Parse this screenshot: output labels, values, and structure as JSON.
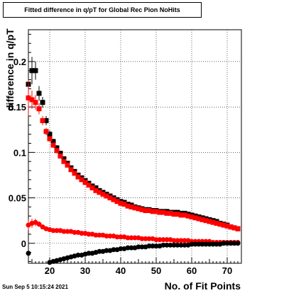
{
  "title": "Fitted difference in q/pT for Global Rec Pion NoHits",
  "timestamp": "Sun Sep  5 10:15:24 2021",
  "chart_data": {
    "type": "scatter",
    "title": "Fitted difference in q/pT for Global Rec Pion NoHits",
    "xlabel": "No. of Fit Points",
    "ylabel": "difference in q/pT",
    "xlim": [
      14,
      74
    ],
    "ylim": [
      -0.022,
      0.235
    ],
    "xticks": [
      20,
      30,
      40,
      50,
      60,
      70
    ],
    "yticks": [
      0,
      0.05,
      0.1,
      0.15,
      0.2
    ],
    "ytick_labels": [
      "0",
      "0.05",
      "0.1",
      "0.15",
      "0.2"
    ],
    "grid": true,
    "series": [
      {
        "color": "#000000",
        "marker": "square",
        "x": [
          14,
          15,
          16,
          17,
          18,
          19,
          20,
          21,
          22,
          23,
          24,
          25,
          26,
          27,
          28,
          29,
          30,
          31,
          32,
          33,
          34,
          35,
          36,
          37,
          38,
          39,
          40,
          41,
          42,
          43,
          44,
          45,
          46,
          47,
          48,
          49,
          50,
          51,
          52,
          53,
          54,
          55,
          56,
          57,
          58,
          59,
          60,
          61,
          62,
          63,
          64,
          65,
          66,
          67,
          68,
          69,
          70,
          71,
          72,
          73
        ],
        "y": [
          0.175,
          0.19,
          0.19,
          0.165,
          0.155,
          0.135,
          0.12,
          0.112,
          0.105,
          0.099,
          0.093,
          0.088,
          0.083,
          0.079,
          0.075,
          0.072,
          0.069,
          0.066,
          0.063,
          0.061,
          0.058,
          0.056,
          0.054,
          0.052,
          0.05,
          0.048,
          0.046,
          0.045,
          0.043,
          0.042,
          0.04,
          0.039,
          0.038,
          0.037,
          0.037,
          0.036,
          0.036,
          0.035,
          0.035,
          0.035,
          0.034,
          0.034,
          0.034,
          0.033,
          0.033,
          0.032,
          0.031,
          0.03,
          0.029,
          0.028,
          0.027,
          0.026,
          0.025,
          0.024,
          0.022,
          0.021,
          0.02,
          0.018,
          0.017,
          0.016
        ],
        "yerr": [
          0.03,
          0.015,
          0.01,
          0.008,
          0.006,
          0.005,
          0.004,
          0.003,
          0.003,
          0.003,
          0.002,
          0.002,
          0.002,
          0.002,
          0.002,
          0.002,
          0.002,
          0.002,
          0.002,
          0.002,
          0.002,
          0.002,
          0.002,
          0.002,
          0.002,
          0.002,
          0.002,
          0.002,
          0.002,
          0.002,
          0.002,
          0.002,
          0.002,
          0.002,
          0.002,
          0.002,
          0.002,
          0.002,
          0.002,
          0.002,
          0.002,
          0.002,
          0.002,
          0.002,
          0.002,
          0.002,
          0.002,
          0.002,
          0.002,
          0.002,
          0.002,
          0.002,
          0.002,
          0.002,
          0.002,
          0.002,
          0.002,
          0.002,
          0.002,
          0.002
        ]
      },
      {
        "color": "#ff0000",
        "marker": "square",
        "x": [
          14,
          15,
          16,
          17,
          18,
          19,
          20,
          21,
          22,
          23,
          24,
          25,
          26,
          27,
          28,
          29,
          30,
          31,
          32,
          33,
          34,
          35,
          36,
          37,
          38,
          39,
          40,
          41,
          42,
          43,
          44,
          45,
          46,
          47,
          48,
          49,
          50,
          51,
          52,
          53,
          54,
          55,
          56,
          57,
          58,
          59,
          60,
          61,
          62,
          63,
          64,
          65,
          66,
          67,
          68,
          69,
          70,
          71,
          72,
          73
        ],
        "y": [
          0.16,
          0.158,
          0.155,
          0.148,
          0.135,
          0.123,
          0.115,
          0.108,
          0.102,
          0.096,
          0.09,
          0.086,
          0.081,
          0.077,
          0.073,
          0.07,
          0.067,
          0.064,
          0.061,
          0.058,
          0.056,
          0.054,
          0.052,
          0.05,
          0.048,
          0.046,
          0.044,
          0.043,
          0.041,
          0.04,
          0.039,
          0.038,
          0.037,
          0.036,
          0.036,
          0.035,
          0.035,
          0.034,
          0.034,
          0.033,
          0.033,
          0.032,
          0.032,
          0.031,
          0.031,
          0.03,
          0.029,
          0.028,
          0.027,
          0.026,
          0.025,
          0.024,
          0.023,
          0.022,
          0.021,
          0.02,
          0.019,
          0.018,
          0.017,
          0.016
        ],
        "yerr": [
          0.02,
          0.01,
          0.008,
          0.006,
          0.005,
          0.004,
          0.003,
          0.003,
          0.003,
          0.002,
          0.002,
          0.002,
          0.002,
          0.002,
          0.002,
          0.002,
          0.002,
          0.002,
          0.002,
          0.002,
          0.002,
          0.002,
          0.002,
          0.002,
          0.002,
          0.002,
          0.002,
          0.002,
          0.002,
          0.002,
          0.002,
          0.002,
          0.002,
          0.002,
          0.002,
          0.002,
          0.002,
          0.002,
          0.002,
          0.002,
          0.002,
          0.002,
          0.002,
          0.002,
          0.002,
          0.002,
          0.002,
          0.002,
          0.002,
          0.002,
          0.002,
          0.002,
          0.002,
          0.002,
          0.002,
          0.002,
          0.002,
          0.002,
          0.002,
          0.002
        ]
      },
      {
        "color": "#ff0000",
        "marker": "circle",
        "x": [
          14,
          15,
          16,
          17,
          18,
          19,
          20,
          21,
          22,
          23,
          24,
          25,
          26,
          27,
          28,
          29,
          30,
          31,
          32,
          33,
          34,
          35,
          36,
          37,
          38,
          39,
          40,
          41,
          42,
          43,
          44,
          45,
          46,
          47,
          48,
          49,
          50,
          51,
          52,
          53,
          54,
          55,
          56,
          57,
          58,
          59,
          60,
          61,
          62,
          63,
          64,
          65,
          66,
          67,
          68,
          69,
          70,
          71,
          72,
          73
        ],
        "y": [
          0.02,
          0.022,
          0.023,
          0.021,
          0.018,
          0.016,
          0.015,
          0.014,
          0.014,
          0.014,
          0.013,
          0.013,
          0.013,
          0.012,
          0.012,
          0.011,
          0.011,
          0.01,
          0.01,
          0.009,
          0.009,
          0.009,
          0.008,
          0.008,
          0.008,
          0.007,
          0.007,
          0.007,
          0.006,
          0.006,
          0.006,
          0.006,
          0.005,
          0.005,
          0.005,
          0.005,
          0.004,
          0.004,
          0.004,
          0.004,
          0.004,
          0.003,
          0.003,
          0.003,
          0.003,
          0.003,
          0.002,
          0.002,
          0.002,
          0.002,
          0.002,
          0.002,
          0.001,
          0.001,
          0.001,
          0.001,
          0.001,
          0.001,
          0.001,
          0.001
        ],
        "yerr": [
          0.006,
          0.005,
          0.004,
          0.003,
          0.002,
          0.002,
          0.002,
          0.002,
          0.002,
          0.002,
          0.002,
          0.002,
          0.002,
          0.002,
          0.002,
          0.002,
          0.002,
          0.002,
          0.002,
          0.002,
          0.002,
          0.002,
          0.002,
          0.002,
          0.002,
          0.002,
          0.002,
          0.002,
          0.002,
          0.002,
          0.002,
          0.002,
          0.002,
          0.002,
          0.002,
          0.002,
          0.002,
          0.002,
          0.002,
          0.002,
          0.002,
          0.002,
          0.002,
          0.002,
          0.002,
          0.002,
          0.002,
          0.002,
          0.002,
          0.002,
          0.002,
          0.002,
          0.002,
          0.002,
          0.002,
          0.002,
          0.002,
          0.002,
          0.002,
          0.002
        ]
      },
      {
        "color": "#000000",
        "marker": "circle",
        "x": [
          14,
          20,
          21,
          22,
          23,
          24,
          25,
          26,
          27,
          28,
          29,
          30,
          31,
          32,
          33,
          34,
          35,
          36,
          37,
          38,
          39,
          40,
          41,
          42,
          43,
          44,
          45,
          46,
          47,
          48,
          49,
          50,
          51,
          52,
          53,
          54,
          55,
          56,
          57,
          58,
          59,
          60,
          61,
          62,
          63,
          64,
          65,
          66,
          67,
          68,
          69,
          70,
          71,
          72,
          73
        ],
        "y": [
          -0.011,
          -0.021,
          -0.02,
          -0.019,
          -0.018,
          -0.017,
          -0.016,
          -0.015,
          -0.014,
          -0.013,
          -0.013,
          -0.012,
          -0.011,
          -0.011,
          -0.01,
          -0.009,
          -0.009,
          -0.008,
          -0.008,
          -0.007,
          -0.007,
          -0.006,
          -0.006,
          -0.005,
          -0.005,
          -0.005,
          -0.004,
          -0.004,
          -0.004,
          -0.003,
          -0.003,
          -0.003,
          -0.003,
          -0.002,
          -0.002,
          -0.002,
          -0.002,
          -0.002,
          -0.002,
          -0.002,
          -0.002,
          -0.001,
          -0.001,
          -0.001,
          -0.001,
          -0.001,
          -0.001,
          -0.001,
          -0.001,
          -0.001,
          0.0,
          0.0,
          0.0,
          0.0,
          0.0
        ],
        "yerr": [
          0.004,
          0.002,
          0.002,
          0.002,
          0.002,
          0.002,
          0.002,
          0.002,
          0.002,
          0.002,
          0.002,
          0.002,
          0.002,
          0.002,
          0.002,
          0.002,
          0.002,
          0.002,
          0.002,
          0.002,
          0.002,
          0.002,
          0.002,
          0.002,
          0.002,
          0.002,
          0.002,
          0.002,
          0.002,
          0.002,
          0.002,
          0.002,
          0.002,
          0.002,
          0.002,
          0.002,
          0.002,
          0.002,
          0.002,
          0.002,
          0.002,
          0.002,
          0.002,
          0.002,
          0.002,
          0.002,
          0.002,
          0.002,
          0.002,
          0.002,
          0.002,
          0.002,
          0.002,
          0.002,
          0.002
        ]
      }
    ]
  }
}
